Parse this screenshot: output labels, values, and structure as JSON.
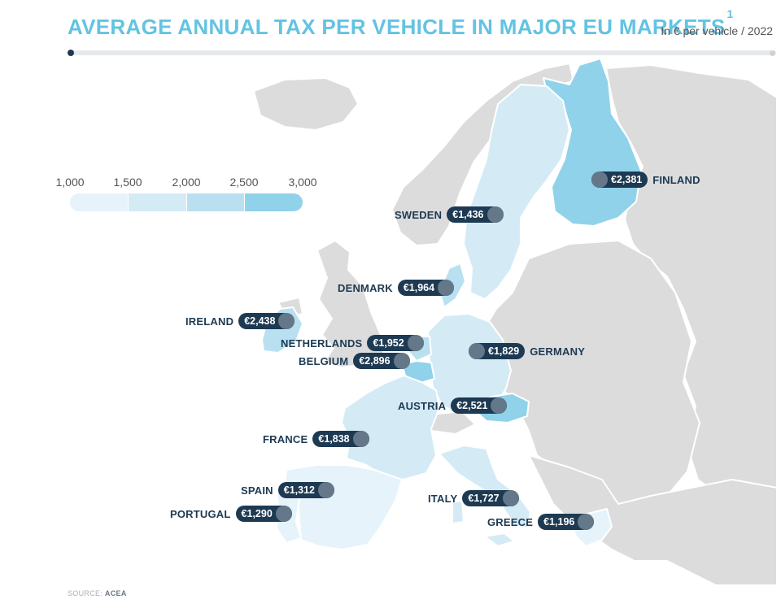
{
  "header": {
    "title": "AVERAGE ANNUAL TAX PER VEHICLE IN MAJOR EU MARKETS",
    "footnote_mark": "1",
    "unit": "In € per vehicle / 2022"
  },
  "legend": {
    "ticks": [
      "1,000",
      "1,500",
      "2,000",
      "2,500",
      "3,000"
    ],
    "colors": [
      "#e6f3fa",
      "#d4ebf6",
      "#b9e0f1",
      "#90d2ea"
    ]
  },
  "colors": {
    "land_other": "#dcdcdc",
    "border": "#ffffff",
    "label_bg": "#1d3a52",
    "label_knob": "#64788a",
    "title": "#63c3e2"
  },
  "countries": [
    {
      "name": "FINLAND",
      "value": "€2,381"
    },
    {
      "name": "SWEDEN",
      "value": "€1,436"
    },
    {
      "name": "DENMARK",
      "value": "€1,964"
    },
    {
      "name": "IRELAND",
      "value": "€2,438"
    },
    {
      "name": "NETHERLANDS",
      "value": "€1,952"
    },
    {
      "name": "BELGIUM",
      "value": "€2,896"
    },
    {
      "name": "GERMANY",
      "value": "€1,829"
    },
    {
      "name": "AUSTRIA",
      "value": "€2,521"
    },
    {
      "name": "FRANCE",
      "value": "€1,838"
    },
    {
      "name": "SPAIN",
      "value": "€1,312"
    },
    {
      "name": "PORTUGAL",
      "value": "€1,290"
    },
    {
      "name": "ITALY",
      "value": "€1,727"
    },
    {
      "name": "GREECE",
      "value": "€1,196"
    }
  ],
  "source": {
    "prefix": "SOURCE:",
    "name": "ACEA"
  }
}
